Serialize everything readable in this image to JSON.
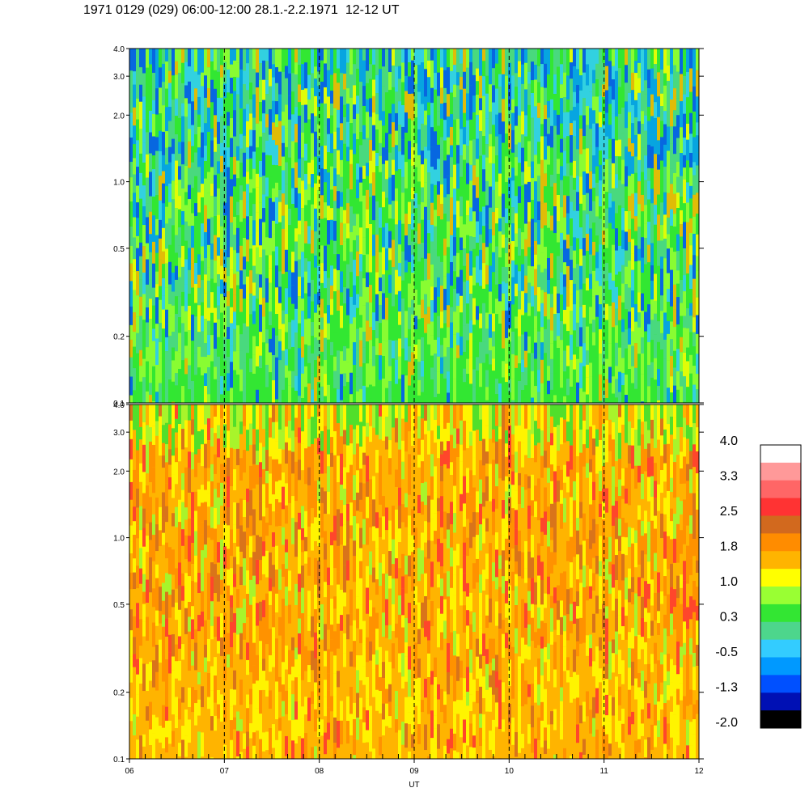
{
  "title": "1971 0129 (029) 06:00-12:00 28.1.-2.2.1971  12-12 UT",
  "chart_data": [
    {
      "type": "heatmap",
      "panel": "top",
      "x_range": [
        6,
        12
      ],
      "y_range": [
        0.1,
        4.0
      ],
      "y_scale": "log",
      "y_ticks": [
        "0.1",
        "0.2",
        "0.5",
        "1.0",
        "2.0",
        "3.0",
        "4.0"
      ],
      "x_ticks": [
        "06",
        "07",
        "08",
        "09",
        "10",
        "11",
        "12"
      ],
      "dashed_vertical_lines_at": [
        7,
        8,
        9,
        10,
        11
      ],
      "dominant_levels": "green to blue (-1.3 to 0.3), with yellow/orange streaks"
    },
    {
      "type": "heatmap",
      "panel": "bottom",
      "x_range": [
        6,
        12
      ],
      "y_range": [
        0.1,
        4.0
      ],
      "y_scale": "log",
      "y_ticks": [
        "0.1",
        "0.2",
        "0.5",
        "1.0",
        "2.0",
        "3.0",
        "4.0"
      ],
      "x_ticks": [
        "06",
        "07",
        "08",
        "09",
        "10",
        "11",
        "12"
      ],
      "xlabel": "UT",
      "dashed_vertical_lines_at": [
        7,
        8,
        9,
        10,
        11
      ],
      "dominant_levels": "yellow to orange (1.0 to 2.5), green near top"
    }
  ],
  "colorbar": {
    "labels": [
      "4.0",
      "3.3",
      "2.5",
      "1.8",
      "1.0",
      "0.3",
      "-0.5",
      "-1.3",
      "-2.0"
    ],
    "colors": [
      "#ffffff",
      "#ff9999",
      "#ff6666",
      "#ff3333",
      "#d2691e",
      "#ff8c00",
      "#ffb400",
      "#ffff00",
      "#99ff33",
      "#33e633",
      "#4dd68c",
      "#33ccff",
      "#0099ff",
      "#0050ff",
      "#0010b4",
      "#000000"
    ]
  }
}
